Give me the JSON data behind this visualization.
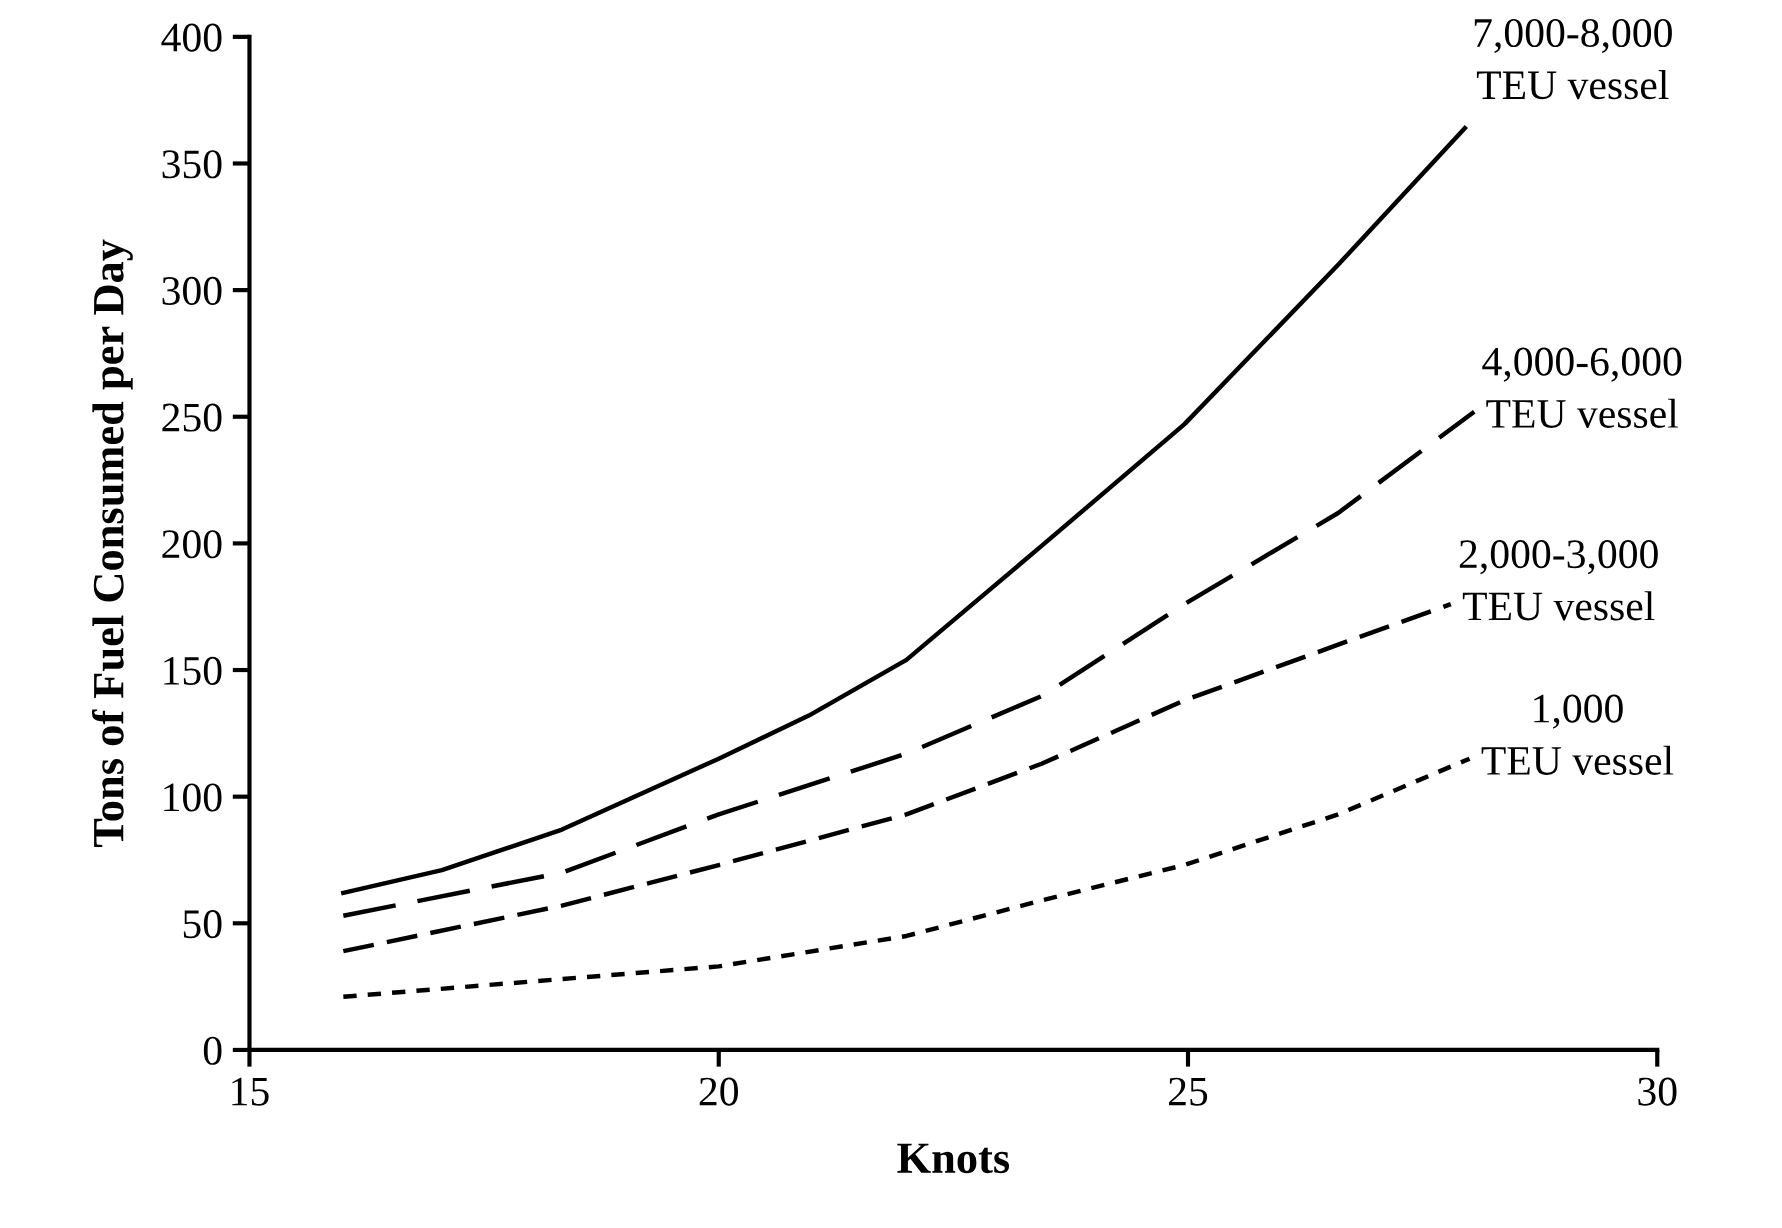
{
  "chart_data": {
    "type": "line",
    "xlabel": "Knots",
    "ylabel": "Tons of Fuel Consumed per Day",
    "xlim": [
      15,
      30
    ],
    "ylim": [
      0,
      400
    ],
    "xticks": [
      15,
      20,
      25,
      30
    ],
    "yticks": [
      0,
      50,
      100,
      150,
      200,
      250,
      300,
      350,
      400
    ],
    "grid": false,
    "legend": false,
    "marker": "none",
    "series": [
      {
        "name": "7,000-8,000\nTEU vessel",
        "color": "#000000",
        "line_style": "solid",
        "x": [
          16,
          17.05,
          18.33,
          20,
          20.96,
          22,
          23.44,
          24.96,
          26.6,
          27.95
        ],
        "values": [
          62,
          71,
          87,
          115,
          132,
          154,
          199,
          247,
          310,
          364
        ]
      },
      {
        "name": "4,000-6,000\nTEU vessel",
        "color": "#000000",
        "line_style": "dashed",
        "x": [
          16,
          18.33,
          20,
          22,
          23.46,
          24.96,
          26.6,
          28.05
        ],
        "values": [
          53,
          70,
          93,
          117,
          140,
          176,
          212,
          252
        ]
      },
      {
        "name": "2,000-3,000\nTEU vessel",
        "color": "#000000",
        "line_style": "dashed",
        "x": [
          16,
          18.33,
          20,
          22,
          23.44,
          24.96,
          26.6,
          27.8
        ],
        "values": [
          39,
          57,
          73,
          93,
          113,
          138,
          160,
          176
        ]
      },
      {
        "name": "1,000\nTEU vessel",
        "color": "#000000",
        "line_style": "dotted",
        "x": [
          16,
          18.33,
          20,
          22,
          23.44,
          24.96,
          26.6,
          28
        ],
        "values": [
          21,
          28,
          33,
          45,
          59,
          73,
          93,
          115
        ]
      }
    ]
  }
}
